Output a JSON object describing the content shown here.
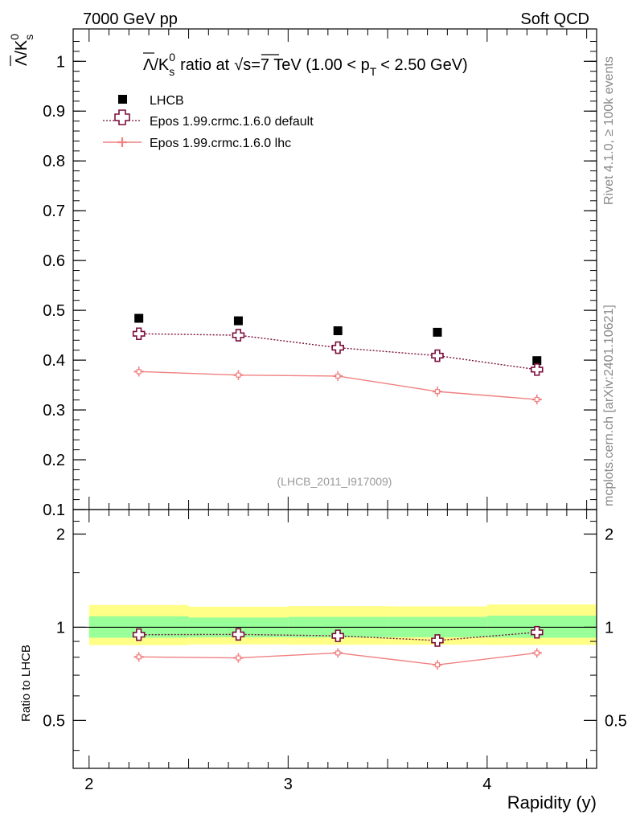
{
  "header": {
    "left": "7000 GeV pp",
    "right": "Soft QCD"
  },
  "side_notes": {
    "rivet": "Rivet 4.1.0, ≥ 100k events",
    "mcplots": "mcplots.cern.ch [arXiv:2401.10621]"
  },
  "chart_data": [
    {
      "type": "scatter",
      "title": "Λ̄/K⁰s ratio at √s=7 TeV (1.00 < pT < 2.50 GeV)",
      "title_main": "/K",
      "title_rest": "ratio at",
      "title_energy": "s=7 TeV (1.00 < p",
      "title_end": "< 2.50 GeV)",
      "ylabel": "Λ̄/K⁰s",
      "xlabel": "Rapidity (y)",
      "analysis_id": "(LHCB_2011_I917009)",
      "xlim": [
        1.92,
        4.55
      ],
      "ylim": [
        0.1,
        1.065
      ],
      "y_ticks": [
        0.1,
        0.2,
        0.3,
        0.4,
        0.5,
        0.6,
        0.7,
        0.8,
        0.9,
        1
      ],
      "y_tick_labels": [
        "0.1",
        "0.2",
        "0.3",
        "0.4",
        "0.5",
        "0.6",
        "0.7",
        "0.8",
        "0.9",
        "1"
      ],
      "legend_position": "top-left",
      "series": [
        {
          "name": "LHCB",
          "style": "marker-square",
          "color": "#000000",
          "x": [
            2.25,
            2.75,
            3.25,
            3.75,
            4.25
          ],
          "y": [
            0.484,
            0.479,
            0.459,
            0.456,
            0.399
          ],
          "yerr": [
            0.003,
            0.003,
            0.003,
            0.003,
            0.003
          ]
        },
        {
          "name": "Epos 1.99.crmc.1.6.0 default",
          "style": "dotted-open-cross",
          "color": "#7a0f3c",
          "x": [
            2.25,
            2.75,
            3.25,
            3.75,
            4.25
          ],
          "y": [
            0.453,
            0.45,
            0.425,
            0.409,
            0.381
          ],
          "yerr": [
            0.01,
            0.01,
            0.01,
            0.01,
            0.01
          ]
        },
        {
          "name": "Epos 1.99.crmc.1.6.0 lhc",
          "style": "solid-cross",
          "color": "#f08080",
          "x": [
            2.25,
            2.75,
            3.25,
            3.75,
            4.25
          ],
          "y": [
            0.377,
            0.37,
            0.368,
            0.337,
            0.321
          ],
          "yerr": [
            0.01,
            0.01,
            0.01,
            0.01,
            0.01
          ]
        }
      ]
    },
    {
      "type": "scatter",
      "ylabel": "Ratio to LHCB",
      "xlabel": "Rapidity (y)",
      "xlim": [
        1.92,
        4.55
      ],
      "ylim": [
        0.35,
        2.4
      ],
      "y_ticks": [
        0.5,
        1,
        2
      ],
      "y_tick_labels": [
        "0.5",
        "1",
        "2"
      ],
      "x_ticks": [
        2,
        3,
        4
      ],
      "x_tick_labels": [
        "2",
        "3",
        "4"
      ],
      "bands": {
        "x_edges": [
          2.0,
          2.5,
          3.0,
          3.5,
          4.0,
          4.55
        ],
        "yellow_low": [
          0.875,
          0.88,
          0.878,
          0.878,
          0.877
        ],
        "yellow_high": [
          1.18,
          1.165,
          1.17,
          1.168,
          1.185
        ],
        "green_low": [
          0.925,
          0.928,
          0.927,
          0.928,
          0.925
        ],
        "green_high": [
          1.085,
          1.075,
          1.08,
          1.08,
          1.09
        ]
      },
      "series": [
        {
          "name": "Epos 1.99.crmc.1.6.0 default",
          "style": "dotted-open-cross",
          "color": "#7a0f3c",
          "x": [
            2.25,
            2.75,
            3.25,
            3.75,
            4.25
          ],
          "y": [
            0.946,
            0.948,
            0.938,
            0.906,
            0.963
          ]
        },
        {
          "name": "Epos 1.99.crmc.1.6.0 lhc",
          "style": "solid-cross",
          "color": "#f08080",
          "x": [
            2.25,
            2.75,
            3.25,
            3.75,
            4.25
          ],
          "y": [
            0.802,
            0.796,
            0.826,
            0.756,
            0.826
          ]
        }
      ]
    }
  ],
  "colors": {
    "yellow_band": "#ffff88",
    "green_band": "#99ff99",
    "analysis_text": "#999999"
  }
}
